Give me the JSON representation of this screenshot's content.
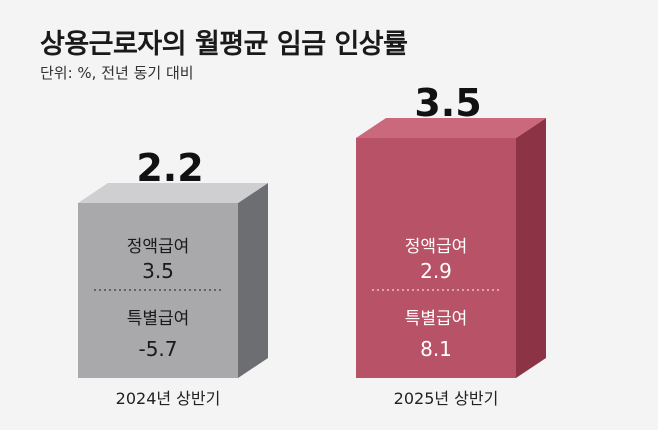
{
  "header": {
    "title": "상용근로자의 월평균 임금 인상률",
    "subtitle": "단위: %, 전년 동기 대비"
  },
  "chart_data": {
    "type": "bar",
    "title": "상용근로자의 월평균 임금 인상률",
    "unit": "단위: %, 전년 동기 대비",
    "categories": [
      "2024년 상반기",
      "2025년 상반기"
    ],
    "values": [
      2.2,
      3.5
    ],
    "value_labels": [
      "2.2",
      "3.5"
    ],
    "breakdown": [
      [
        {
          "label": "정액급여",
          "value": 3.5,
          "display": "3.5"
        },
        {
          "label": "특별급여",
          "value": -5.7,
          "display": "-5.7"
        }
      ],
      [
        {
          "label": "정액급여",
          "value": 2.9,
          "display": "2.9"
        },
        {
          "label": "특별급여",
          "value": 8.1,
          "display": "8.1"
        }
      ]
    ],
    "colors": [
      {
        "front": "#a9a9ab",
        "side": "#6d6e72",
        "top": "#cfcfd1",
        "text": "#1a1a1a",
        "divider": "#3a3a3a"
      },
      {
        "front": "#b85266",
        "side": "#8c3446",
        "top": "#c9697b",
        "text": "#ffffff",
        "divider": "#f0d6db"
      }
    ],
    "ylim": [
      0,
      4
    ],
    "grid": false,
    "legend": "none"
  }
}
